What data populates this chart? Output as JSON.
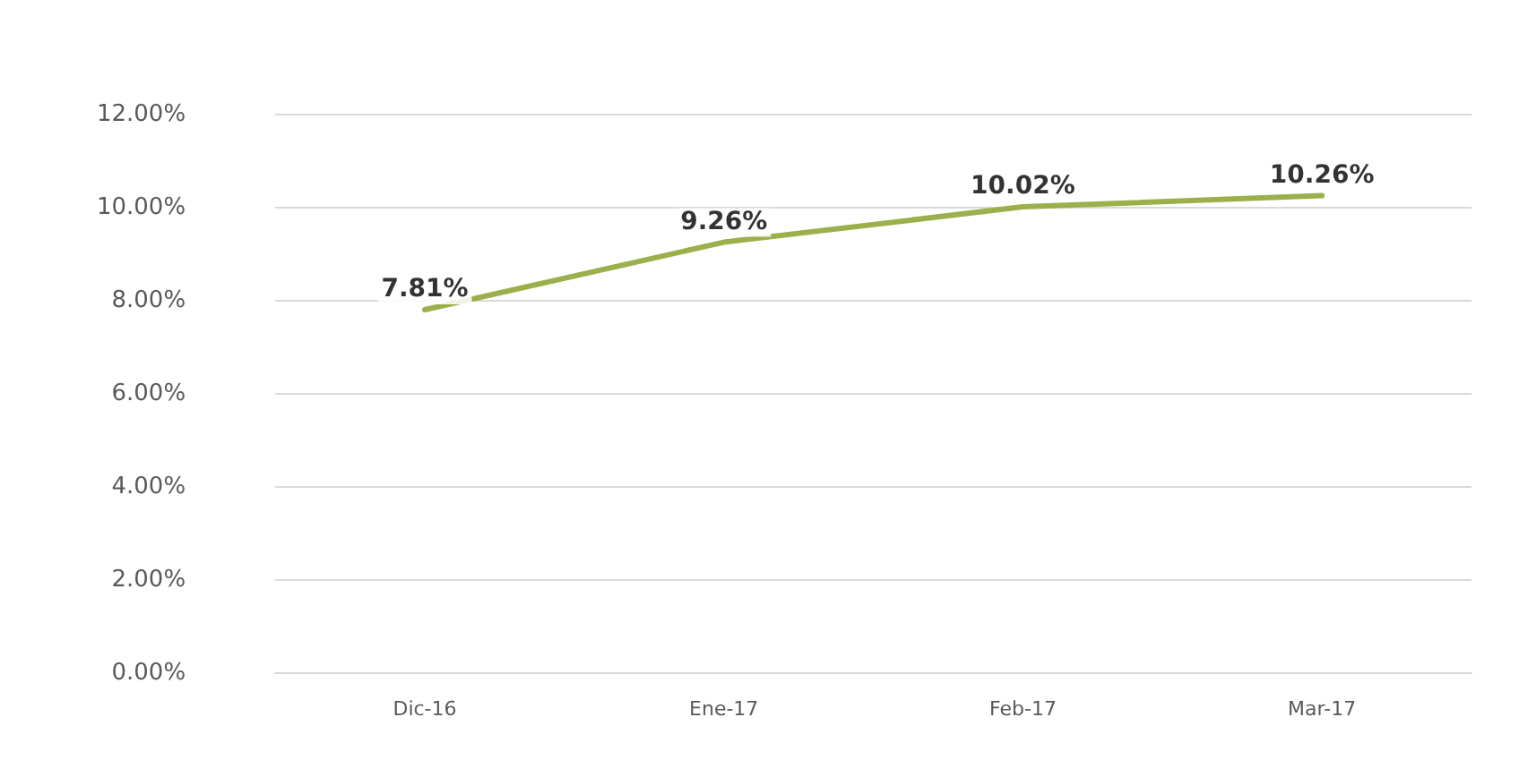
{
  "chart_data": {
    "type": "line",
    "categories": [
      "Dic-16",
      "Ene-17",
      "Feb-17",
      "Mar-17"
    ],
    "series": [
      {
        "color": "#9bb04a",
        "values": [
          7.81,
          9.26,
          10.02,
          10.26
        ],
        "value_labels": [
          "7.81%",
          "9.26%",
          "10.02%",
          "10.26%"
        ]
      }
    ],
    "ylim": [
      0,
      12
    ],
    "yticks": [
      {
        "value": 0,
        "label": "0.00%"
      },
      {
        "value": 2,
        "label": "2.00%"
      },
      {
        "value": 4,
        "label": "4.00%"
      },
      {
        "value": 6,
        "label": "6.00%"
      },
      {
        "value": 8,
        "label": "8.00%"
      },
      {
        "value": 10,
        "label": "10.00%"
      },
      {
        "value": 12,
        "label": "12.00%"
      }
    ],
    "grid": "y",
    "legend": false,
    "marker": "none",
    "line_style": "solid"
  }
}
